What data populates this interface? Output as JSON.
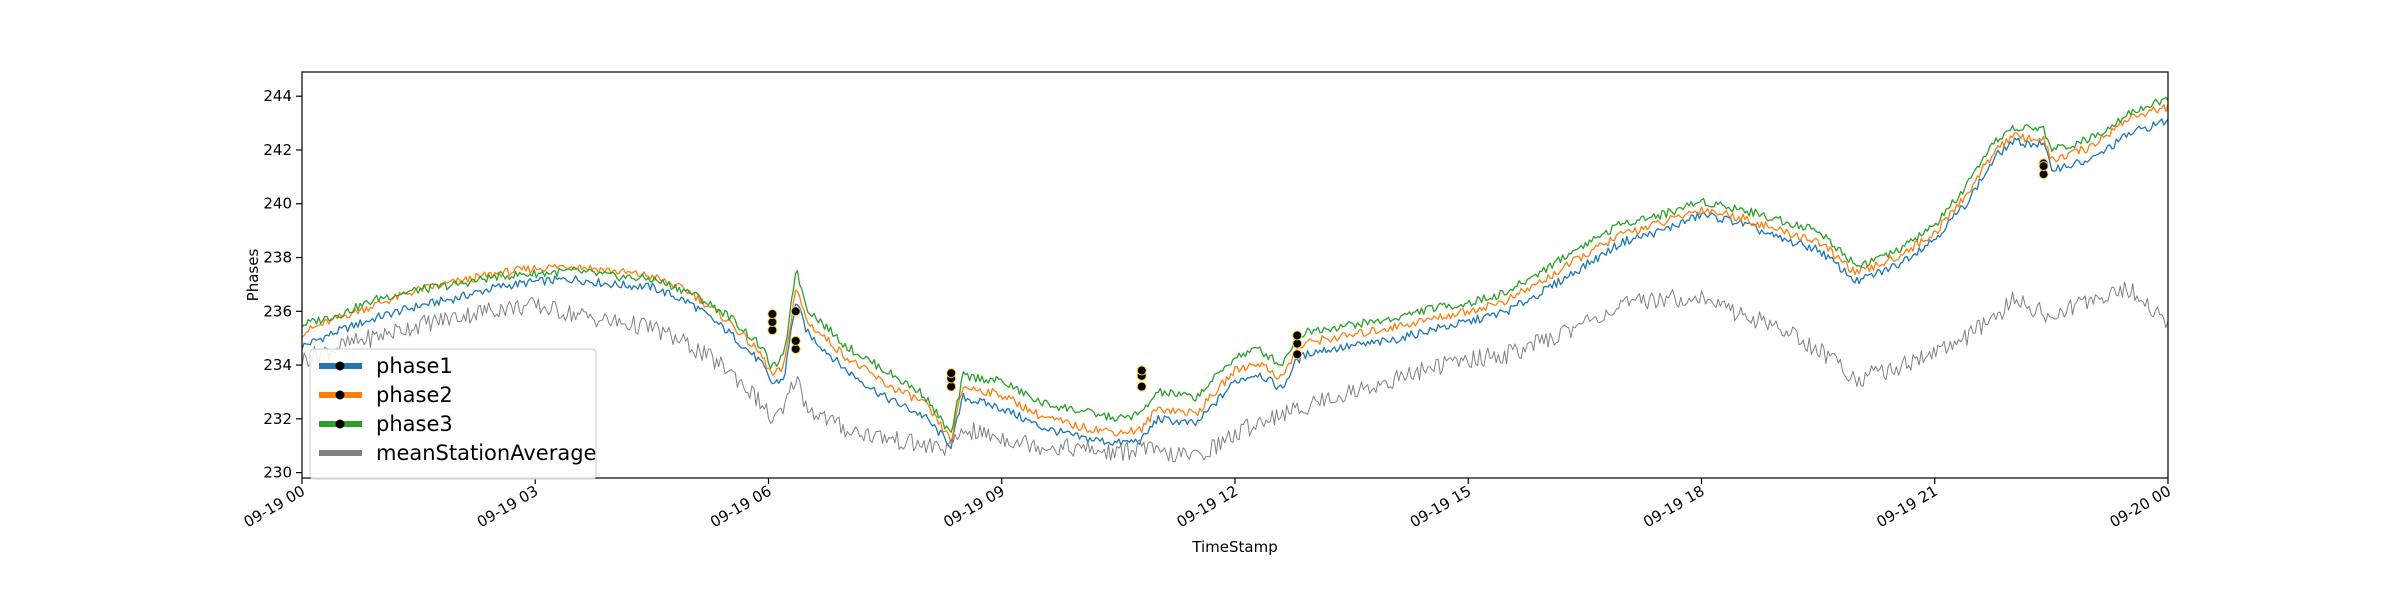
{
  "chart_data": {
    "type": "line",
    "title": "",
    "xlabel": "TimeStamp",
    "ylabel": "Phases",
    "xlim": [
      0,
      24
    ],
    "ylim": [
      229.8,
      244.9
    ],
    "grid": false,
    "legend_position": "lower-left",
    "x_ticks": [
      {
        "value": 0,
        "label": "09-19 00"
      },
      {
        "value": 3,
        "label": "09-19 03"
      },
      {
        "value": 6,
        "label": "09-19 06"
      },
      {
        "value": 9,
        "label": "09-19 09"
      },
      {
        "value": 12,
        "label": "09-19 12"
      },
      {
        "value": 15,
        "label": "09-19 15"
      },
      {
        "value": 18,
        "label": "09-19 18"
      },
      {
        "value": 21,
        "label": "09-19 21"
      },
      {
        "value": 24,
        "label": "09-20 00"
      }
    ],
    "y_ticks": [
      230,
      232,
      234,
      236,
      238,
      240,
      242,
      244
    ],
    "x": [
      0,
      0.5,
      1,
      1.5,
      2,
      2.5,
      3,
      3.5,
      4,
      4.5,
      5,
      5.5,
      5.9,
      6.05,
      6.2,
      6.35,
      6.5,
      7,
      7.5,
      8,
      8.35,
      8.5,
      9,
      9.5,
      10,
      10.5,
      10.8,
      11,
      11.5,
      12,
      12.3,
      12.6,
      12.8,
      13,
      13.5,
      14,
      14.5,
      15,
      15.5,
      16,
      16.5,
      17,
      17.5,
      18,
      18.5,
      19,
      19.5,
      20,
      20.5,
      21,
      21.4,
      21.8,
      22,
      22.4,
      22.5,
      23,
      23.5,
      24
    ],
    "series": [
      {
        "name": "phase1",
        "color": "#1f77b4",
        "values": [
          234.7,
          235.3,
          235.8,
          236.2,
          236.5,
          236.9,
          237.1,
          237.2,
          237.0,
          236.9,
          236.3,
          235.2,
          234.1,
          233.3,
          233.5,
          236.4,
          235.2,
          233.8,
          232.8,
          232.1,
          231.0,
          232.8,
          232.4,
          231.7,
          231.3,
          231.1,
          231.2,
          232.0,
          231.8,
          233.4,
          233.7,
          233.1,
          234.2,
          234.5,
          234.7,
          234.9,
          235.3,
          235.6,
          236.0,
          236.8,
          237.7,
          238.6,
          239.0,
          239.6,
          239.3,
          238.7,
          238.3,
          237.1,
          237.7,
          238.7,
          240.0,
          241.8,
          242.3,
          242.2,
          241.3,
          241.6,
          242.6,
          243.1
        ]
      },
      {
        "name": "phase2",
        "color": "#ff7f0e",
        "values": [
          235.2,
          235.8,
          236.3,
          236.8,
          237.1,
          237.4,
          237.6,
          237.7,
          237.5,
          237.3,
          236.7,
          235.6,
          234.4,
          233.6,
          233.9,
          236.9,
          235.6,
          234.3,
          233.3,
          232.6,
          231.2,
          233.2,
          232.9,
          232.1,
          231.7,
          231.5,
          231.6,
          232.4,
          232.2,
          233.8,
          234.1,
          233.5,
          234.6,
          234.9,
          235.1,
          235.4,
          235.7,
          236.0,
          236.4,
          237.2,
          238.1,
          238.9,
          239.3,
          239.8,
          239.5,
          239.0,
          238.6,
          237.4,
          238.0,
          238.9,
          240.3,
          242.1,
          242.5,
          242.4,
          241.6,
          242.1,
          243.2,
          243.6
        ]
      },
      {
        "name": "phase3",
        "color": "#2ca02c",
        "values": [
          235.5,
          235.9,
          236.5,
          236.8,
          237.0,
          237.3,
          237.4,
          237.5,
          237.3,
          237.2,
          236.7,
          235.8,
          234.7,
          233.9,
          234.3,
          237.6,
          236.1,
          234.7,
          233.8,
          232.9,
          231.4,
          233.6,
          233.4,
          232.6,
          232.3,
          232.0,
          232.2,
          233.0,
          232.8,
          234.3,
          234.6,
          234.0,
          235.1,
          235.3,
          235.5,
          235.7,
          236.1,
          236.3,
          236.7,
          237.6,
          238.5,
          239.3,
          239.6,
          240.1,
          239.8,
          239.4,
          239.0,
          237.7,
          238.2,
          239.2,
          240.6,
          242.4,
          242.8,
          242.8,
          242.0,
          242.4,
          243.4,
          243.9
        ]
      },
      {
        "name": "meanStationAverage",
        "color": "#808080",
        "values": [
          234.2,
          234.7,
          235.1,
          235.5,
          235.8,
          236.1,
          236.2,
          235.9,
          235.6,
          235.4,
          234.7,
          233.8,
          232.6,
          231.9,
          232.3,
          233.6,
          232.4,
          231.6,
          231.3,
          231.0,
          230.9,
          231.6,
          231.3,
          231.0,
          230.9,
          230.7,
          231.0,
          230.7,
          230.6,
          231.4,
          231.9,
          232.2,
          232.3,
          232.6,
          233.0,
          233.4,
          233.9,
          234.2,
          234.4,
          234.9,
          235.6,
          236.2,
          236.5,
          236.5,
          235.9,
          235.4,
          234.6,
          233.5,
          233.9,
          234.5,
          235.0,
          235.8,
          236.4,
          236.0,
          235.7,
          236.5,
          236.8,
          235.6
        ]
      }
    ],
    "markers": {
      "color": "#000000",
      "points": [
        {
          "x": 6.05,
          "y": [
            235.3,
            235.6,
            235.9
          ]
        },
        {
          "x": 6.35,
          "y": [
            234.6,
            234.9,
            236.0
          ]
        },
        {
          "x": 8.35,
          "y": [
            233.2,
            233.5,
            233.7
          ]
        },
        {
          "x": 10.8,
          "y": [
            233.2,
            233.6,
            233.8
          ]
        },
        {
          "x": 12.8,
          "y": [
            234.4,
            234.8,
            235.1
          ]
        },
        {
          "x": 22.4,
          "y": [
            241.1,
            241.5,
            241.4
          ]
        }
      ]
    }
  }
}
